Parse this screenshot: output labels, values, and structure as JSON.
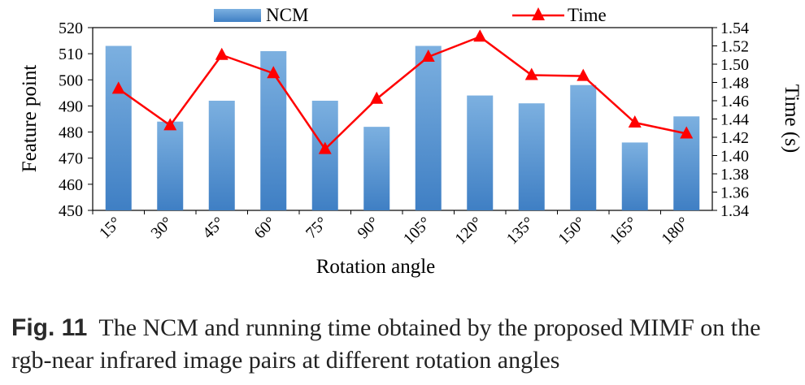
{
  "chart_data": {
    "type": "bar+line",
    "categories": [
      "15°",
      "30°",
      "45°",
      "60°",
      "75°",
      "90°",
      "105°",
      "120°",
      "135°",
      "150°",
      "165°",
      "180°"
    ],
    "series": [
      {
        "name": "NCM",
        "type": "bar",
        "axis": "left",
        "color": "#5b9bd5",
        "values": [
          513,
          484,
          492,
          511,
          492,
          482,
          513,
          494,
          491,
          498,
          476,
          486
        ]
      },
      {
        "name": "Time",
        "type": "line",
        "axis": "right",
        "color": "#ff0000",
        "values": [
          1.473,
          1.433,
          1.51,
          1.49,
          1.407,
          1.462,
          1.508,
          1.53,
          1.488,
          1.487,
          1.436,
          1.424
        ]
      }
    ],
    "xlabel": "Rotation angle",
    "ylabel": "Feature point",
    "y2label": "Time (s)",
    "ylim": [
      450,
      520
    ],
    "yticks": [
      "450",
      "460",
      "470",
      "480",
      "490",
      "500",
      "510",
      "520"
    ],
    "y2lim": [
      1.34,
      1.54
    ],
    "y2ticks": [
      "1.34",
      "1.36",
      "1.38",
      "1.40",
      "1.42",
      "1.44",
      "1.46",
      "1.48",
      "1.50",
      "1.52",
      "1.54"
    ],
    "legend_position": "top",
    "grid": false
  },
  "caption": {
    "label": "Fig. 11",
    "text": "The NCM and running time obtained by the proposed MIMF on the rgb-near infrared image pairs at different rotation angles"
  }
}
